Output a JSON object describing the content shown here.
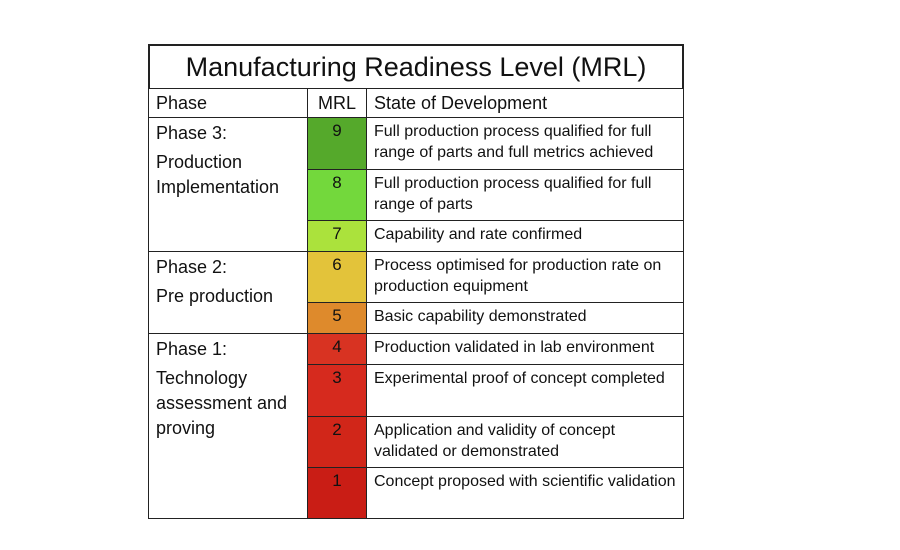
{
  "title": "Manufacturing Readiness Level (MRL)",
  "header": [
    "Phase",
    "MRL",
    "State of Development"
  ],
  "phases": [
    {
      "label": "Phase 3:",
      "description": "Production Implementation",
      "levels": [
        {
          "mrl": 9,
          "color": "#55a92b",
          "state": "Full production process qualified for full range of parts and full metrics achieved"
        },
        {
          "mrl": 8,
          "color": "#73d83c",
          "state": "Full production process qualified for full range of parts"
        },
        {
          "mrl": 7,
          "color": "#abe23c",
          "state": "Capability and rate confirmed"
        }
      ]
    },
    {
      "label": "Phase 2:",
      "description": "Pre production",
      "levels": [
        {
          "mrl": 6,
          "color": "#e3c33a",
          "state": "Process optimised for production rate on production equipment"
        },
        {
          "mrl": 5,
          "color": "#de8a2c",
          "state": "Basic capability demonstrated"
        }
      ]
    },
    {
      "label": "Phase 1:",
      "description": "Technology assessment and proving",
      "levels": [
        {
          "mrl": 4,
          "color": "#d83322",
          "state": "Production validated in lab environment"
        },
        {
          "mrl": 3,
          "color": "#d62a1e",
          "state": "Experimental proof of concept completed"
        },
        {
          "mrl": 2,
          "color": "#d12619",
          "state": "Application and validity of concept validated or demonstrated"
        },
        {
          "mrl": 1,
          "color": "#c91d15",
          "state": "Concept proposed with scientific validation"
        }
      ]
    }
  ]
}
